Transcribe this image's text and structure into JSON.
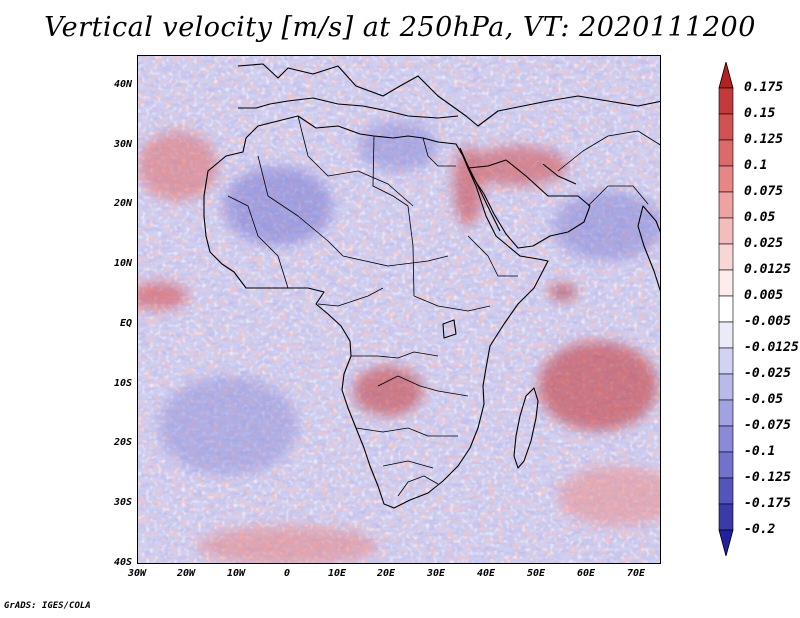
{
  "title": "Vertical velocity [m/s] at 250hPa, VT: 2020111200",
  "footer": "GrADS: IGES/COLA",
  "lat_labels": [
    "40N",
    "30N",
    "20N",
    "10N",
    "EQ",
    "10S",
    "20S",
    "30S",
    "40S"
  ],
  "lon_labels": [
    "30W",
    "20W",
    "10W",
    "0",
    "10E",
    "20E",
    "30E",
    "40E",
    "50E",
    "60E",
    "70E"
  ],
  "colorbar": {
    "labels": [
      "0.175",
      "0.15",
      "0.125",
      "0.1",
      "0.075",
      "0.05",
      "0.025",
      "0.0125",
      "0.005",
      "-0.005",
      "-0.0125",
      "-0.025",
      "-0.05",
      "-0.075",
      "-0.1",
      "-0.125",
      "-0.175",
      "-0.2"
    ],
    "colors": [
      "#b22222",
      "#c43a3a",
      "#d05252",
      "#dc6a6a",
      "#e68686",
      "#eea2a2",
      "#f4bcbc",
      "#f9d6d6",
      "#fcecec",
      "#ffffff",
      "#eaeaf9",
      "#d2d2f2",
      "#babaea",
      "#a2a2e2",
      "#8a8ad8",
      "#7272cc",
      "#5454bc",
      "#3a3aa8",
      "#2020a0"
    ]
  },
  "map_colors": {
    "ocean_base": "#d8d8f2",
    "ascent": "#e68686",
    "strong_ascent": "#b22222",
    "subsidence": "#8a8ad8",
    "coastline": "#000000"
  }
}
